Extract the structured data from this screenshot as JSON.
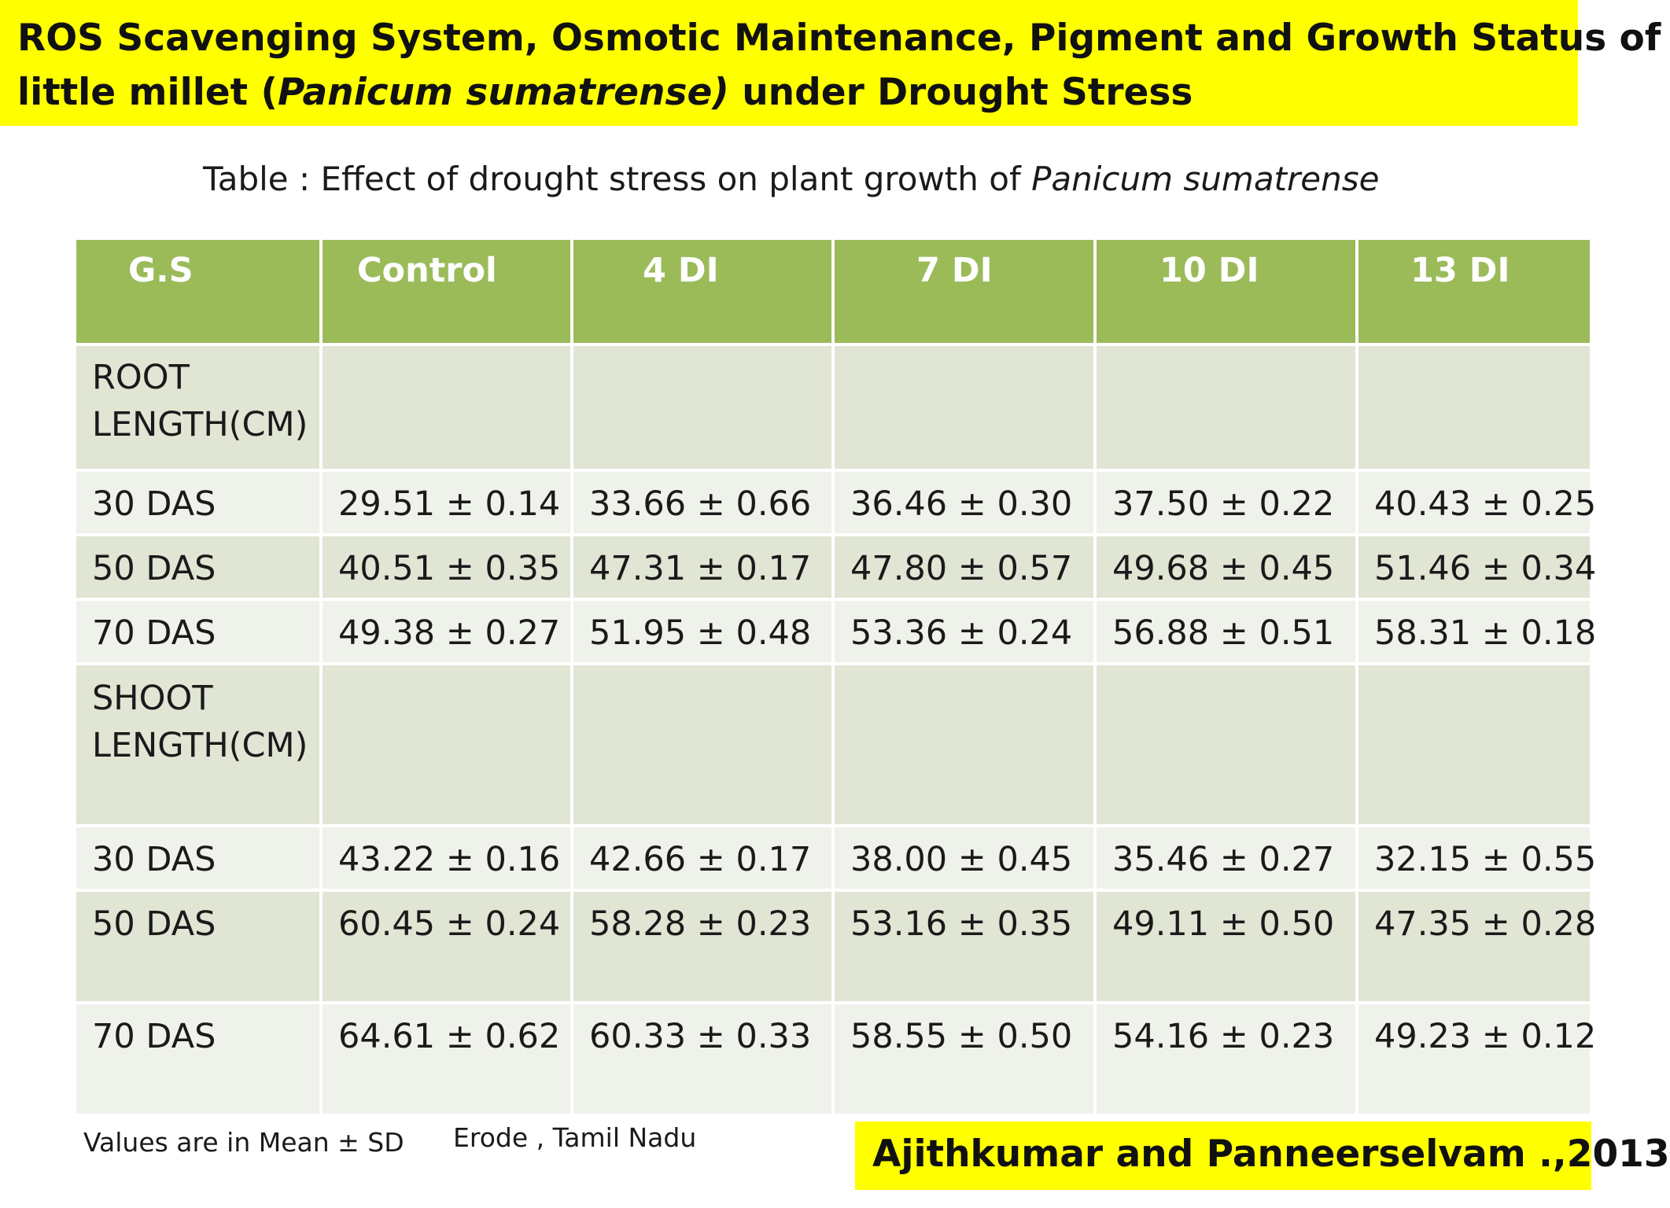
{
  "title": {
    "line1": "ROS Scavenging System, Osmotic Maintenance, Pigment and Growth Status of",
    "line2_prefix": "little millet (",
    "line2_italic": "Panicum sumatrense)",
    "line2_suffix": " under Drought Stress"
  },
  "caption": {
    "prefix": "Table : Effect of drought stress  on plant growth of ",
    "italic": "Panicum sumatrense"
  },
  "table": {
    "headers": [
      "G.S",
      "Control",
      "4 DI",
      "7 DI",
      "10 DI",
      "13 DI"
    ],
    "sections": [
      {
        "label": "ROOT LENGTH(CM)",
        "rows": [
          [
            "30 DAS",
            "29.51 ± 0.14",
            "33.66 ± 0.66",
            "36.46 ± 0.30",
            "37.50 ± 0.22",
            "40.43 ± 0.25"
          ],
          [
            "50 DAS",
            "40.51 ± 0.35",
            "47.31 ± 0.17",
            "47.80 ± 0.57",
            "49.68 ± 0.45",
            "51.46 ± 0.34"
          ],
          [
            "70 DAS",
            "49.38 ± 0.27",
            "51.95 ± 0.48",
            "53.36 ± 0.24",
            "56.88 ± 0.51",
            "58.31 ± 0.18"
          ]
        ]
      },
      {
        "label": "SHOOT LENGTH(CM)",
        "rows": [
          [
            "30 DAS",
            "43.22 ± 0.16",
            "42.66 ± 0.17",
            "38.00 ± 0.45",
            "35.46 ± 0.27",
            "32.15 ± 0.55"
          ],
          [
            "50 DAS",
            "60.45 ± 0.24",
            "58.28 ± 0.23",
            "53.16 ± 0.35",
            "49.11 ± 0.50",
            "47.35 ± 0.28"
          ],
          [
            "70 DAS",
            "64.61 ± 0.62",
            "60.33 ± 0.33",
            "58.55 ± 0.50",
            "54.16 ± 0.23",
            "49.23 ± 0.12"
          ]
        ]
      }
    ]
  },
  "footnote": {
    "values_note": "Values are in Mean  ±  SD",
    "location": "Erode , Tamil Nadu"
  },
  "citation": "Ajithkumar  and Panneerselvam .,2013",
  "colors": {
    "banner": "#ffff00",
    "header": "#9bbb59",
    "row_dark": "#e0e5d4",
    "row_light": "#eff2ea"
  }
}
